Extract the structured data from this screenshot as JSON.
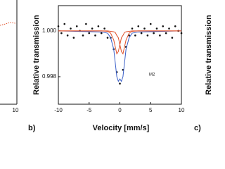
{
  "chart_data": {
    "type": "scatter",
    "xlabel": "Velocity [mm/s]",
    "ylabel": "Relative transmission",
    "annotation": "M2",
    "panel_label": "b)",
    "xlim": [
      -10,
      10
    ],
    "xticks": [
      -10,
      -5,
      0,
      5,
      10
    ],
    "ylim": [
      0.9968,
      1.0011
    ],
    "yticks": [
      {
        "value": 1.0,
        "label": "1.000"
      },
      {
        "value": 0.998,
        "label": "0.998"
      }
    ],
    "series": [
      {
        "color": "#111111",
        "x": [
          -10,
          -9.5,
          -9,
          -8.5,
          -8,
          -7.5,
          -7,
          -6.5,
          -6,
          -5.5,
          -5,
          -4.5,
          -4,
          -3.5,
          -3,
          -2.5,
          -2,
          -1.5,
          -1,
          -0.5,
          0,
          0.5,
          1,
          1.5,
          2,
          2.5,
          3,
          3.5,
          4,
          4.5,
          5,
          5.5,
          6,
          6.5,
          7,
          7.5,
          8,
          8.5,
          9,
          9.5,
          10
        ],
        "values": [
          1.0002,
          0.9999,
          1.0003,
          0.9998,
          1.0001,
          0.9997,
          1.0002,
          1.0,
          0.9998,
          1.0003,
          0.9999,
          1.0001,
          0.9998,
          1.0002,
          0.9999,
          1.0001,
          0.9997,
          0.9997,
          0.9992,
          0.9982,
          0.9977,
          0.9983,
          0.9993,
          0.9998,
          1.0001,
          0.9998,
          1.0002,
          0.9999,
          1.0001,
          0.9998,
          1.0003,
          0.9999,
          1.0001,
          0.9998,
          1.0002,
          0.9999,
          1.0001,
          0.9997,
          1.0002,
          1.0,
          0.9999
        ]
      },
      {
        "color": "#3a5fc8",
        "x": [
          -10,
          -3,
          -2,
          -1.5,
          -1,
          -0.75,
          -0.5,
          -0.25,
          0,
          0.25,
          0.5,
          0.75,
          1,
          1.5,
          2,
          3,
          10
        ],
        "values": [
          1.0,
          0.99995,
          0.9999,
          0.9997,
          0.9992,
          0.9986,
          0.998,
          0.9978,
          0.9979,
          0.9978,
          0.998,
          0.9986,
          0.9992,
          0.9997,
          0.9999,
          0.99995,
          1.0
        ]
      },
      {
        "color": "#e0502a",
        "x": [
          -10,
          -3,
          -2,
          -1.5,
          -1,
          -0.75,
          -0.5,
          -0.25,
          0,
          0.25,
          0.5,
          0.75,
          1,
          1.5,
          2,
          3,
          10
        ],
        "values": [
          1.0,
          1.0,
          0.99998,
          0.9999,
          0.9996,
          0.9993,
          0.999,
          0.9991,
          0.9994,
          0.9997,
          0.9998,
          0.99993,
          0.99996,
          0.99998,
          1.0,
          1.0,
          1.0
        ]
      },
      {
        "color": "#e0502a",
        "x": [
          -10,
          -3,
          -2,
          -1.5,
          -1,
          -0.75,
          -0.5,
          -0.25,
          0,
          0.25,
          0.5,
          0.75,
          1,
          1.5,
          2,
          3,
          10
        ],
        "values": [
          1.0,
          1.0,
          1.0,
          0.99998,
          0.99996,
          0.99993,
          0.9998,
          0.9997,
          0.9994,
          0.9991,
          0.999,
          0.9993,
          0.9996,
          0.9999,
          0.99998,
          1.0,
          1.0
        ]
      }
    ]
  },
  "left_panel_tick": "10",
  "right_panel": {
    "panel_label": "c)",
    "ylabel": "Relative transmission"
  }
}
